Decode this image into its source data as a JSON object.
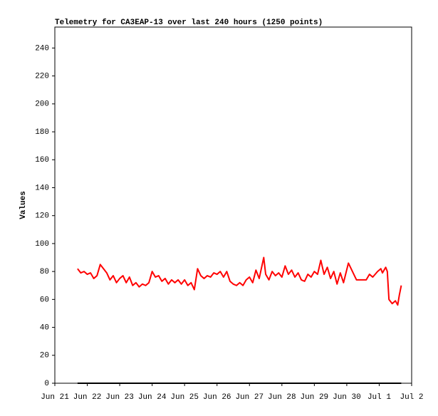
{
  "chart_data": {
    "type": "line",
    "title": "Telemetry for CA3EAP-13 over last 240 hours (1250 points)",
    "y_label": "Values",
    "x": [
      0.7,
      0.8,
      0.9,
      1.0,
      1.1,
      1.2,
      1.3,
      1.4,
      1.5,
      1.6,
      1.7,
      1.8,
      1.9,
      2.0,
      2.1,
      2.2,
      2.3,
      2.4,
      2.5,
      2.6,
      2.7,
      2.8,
      2.9,
      3.0,
      3.1,
      3.2,
      3.3,
      3.4,
      3.5,
      3.6,
      3.7,
      3.8,
      3.9,
      4.0,
      4.1,
      4.2,
      4.3,
      4.4,
      4.5,
      4.6,
      4.7,
      4.8,
      4.9,
      5.0,
      5.1,
      5.2,
      5.3,
      5.4,
      5.5,
      5.6,
      5.7,
      5.8,
      5.9,
      6.0,
      6.1,
      6.2,
      6.3,
      6.44,
      6.5,
      6.6,
      6.7,
      6.8,
      6.9,
      7.0,
      7.1,
      7.2,
      7.3,
      7.4,
      7.5,
      7.6,
      7.7,
      7.8,
      7.9,
      8.0,
      8.1,
      8.2,
      8.3,
      8.4,
      8.5,
      8.6,
      8.7,
      8.8,
      8.9,
      9.05,
      9.3,
      9.6,
      9.7,
      9.8,
      9.95,
      10.05,
      10.1,
      10.2,
      10.25,
      10.3,
      10.4,
      10.5,
      10.57,
      10.62,
      10.68
    ],
    "series": [
      {
        "color": "#ff0000",
        "values": [
          82,
          79,
          80,
          78,
          79,
          75,
          77,
          85,
          82,
          79,
          74,
          77,
          72,
          75,
          77,
          72,
          76,
          70,
          72,
          69,
          71,
          70,
          72,
          80,
          76,
          77,
          73,
          75,
          71,
          74,
          72,
          74,
          71,
          74,
          70,
          72,
          67,
          82,
          77,
          75,
          77,
          76,
          79,
          78,
          80,
          76,
          80,
          73,
          71,
          70,
          72,
          70,
          74,
          76,
          72,
          81,
          75,
          90,
          78,
          74,
          80,
          77,
          79,
          76,
          84,
          78,
          81,
          76,
          79,
          74,
          73,
          78,
          76,
          80,
          78,
          88,
          78,
          83,
          75,
          80,
          71,
          79,
          72,
          86,
          74,
          74,
          78,
          76,
          80,
          82,
          79,
          83,
          80,
          60,
          57,
          59,
          56,
          63,
          70
        ]
      },
      {
        "color": "#000000",
        "values": [
          0,
          null,
          null,
          null,
          null,
          null,
          null,
          null,
          null,
          null,
          null,
          null,
          null,
          null,
          null,
          null,
          null,
          null,
          null,
          null,
          null,
          null,
          null,
          null,
          null,
          null,
          null,
          null,
          null,
          null,
          null,
          null,
          null,
          null,
          null,
          null,
          null,
          null,
          null,
          null,
          null,
          null,
          null,
          null,
          null,
          null,
          null,
          null,
          null,
          null,
          null,
          null,
          null,
          null,
          null,
          null,
          null,
          null,
          null,
          null,
          null,
          null,
          null,
          null,
          null,
          null,
          null,
          null,
          null,
          null,
          null,
          null,
          null,
          null,
          null,
          null,
          null,
          null,
          null,
          null,
          null,
          null,
          null,
          null,
          null,
          null,
          null,
          null,
          null,
          null,
          null,
          null,
          null,
          null,
          null,
          null,
          null,
          null,
          0
        ]
      }
    ],
    "xlim": [
      0,
      11
    ],
    "xticks": [
      {
        "value": 0,
        "label": "Jun 21"
      },
      {
        "value": 1,
        "label": "Jun 22"
      },
      {
        "value": 2,
        "label": "Jun 23"
      },
      {
        "value": 3,
        "label": "Jun 24"
      },
      {
        "value": 4,
        "label": "Jun 25"
      },
      {
        "value": 5,
        "label": "Jun 26"
      },
      {
        "value": 6,
        "label": "Jun 27"
      },
      {
        "value": 7,
        "label": "Jun 28"
      },
      {
        "value": 8,
        "label": "Jun 29"
      },
      {
        "value": 9,
        "label": "Jun 30"
      },
      {
        "value": 10,
        "label": "Jul 1"
      },
      {
        "value": 11,
        "label": "Jul 2"
      }
    ],
    "ylim": [
      0,
      255
    ],
    "yticks": [
      0,
      20,
      40,
      60,
      80,
      100,
      120,
      140,
      160,
      180,
      200,
      220,
      240
    ],
    "grid": false
  }
}
